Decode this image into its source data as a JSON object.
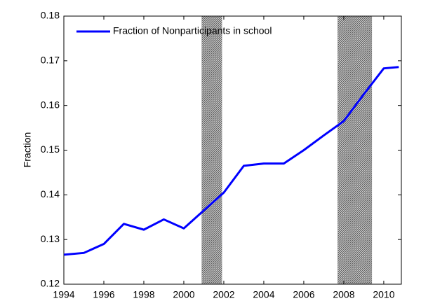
{
  "chart_data": {
    "type": "line",
    "ylabel": "Fraction",
    "x": [
      1994,
      1995,
      1996,
      1997,
      1998,
      1999,
      2000,
      2001,
      2002,
      2003,
      2004,
      2005,
      2006,
      2007,
      2008,
      2009,
      2010,
      2010.75
    ],
    "series": [
      {
        "name": "Fraction of Nonparticipants in school",
        "color": "#0000ff",
        "values": [
          0.1266,
          0.127,
          0.129,
          0.1335,
          0.1322,
          0.1345,
          0.1325,
          0.1365,
          0.1405,
          0.1465,
          0.147,
          0.147,
          0.15,
          0.1533,
          0.1565,
          0.1625,
          0.1683,
          0.1686
        ]
      }
    ],
    "shaded_regions": [
      [
        2000.9,
        2001.9
      ],
      [
        2007.7,
        2009.4
      ]
    ],
    "shade_color": "#888888",
    "xlim": [
      1994,
      2010.88
    ],
    "xticks": [
      1994,
      1996,
      1998,
      2000,
      2002,
      2004,
      2006,
      2008,
      2010
    ],
    "ylim": [
      0.12,
      0.18
    ],
    "yticks": [
      0.12,
      0.13,
      0.14,
      0.15,
      0.16,
      0.17,
      0.18
    ],
    "legend": "upper-left"
  }
}
